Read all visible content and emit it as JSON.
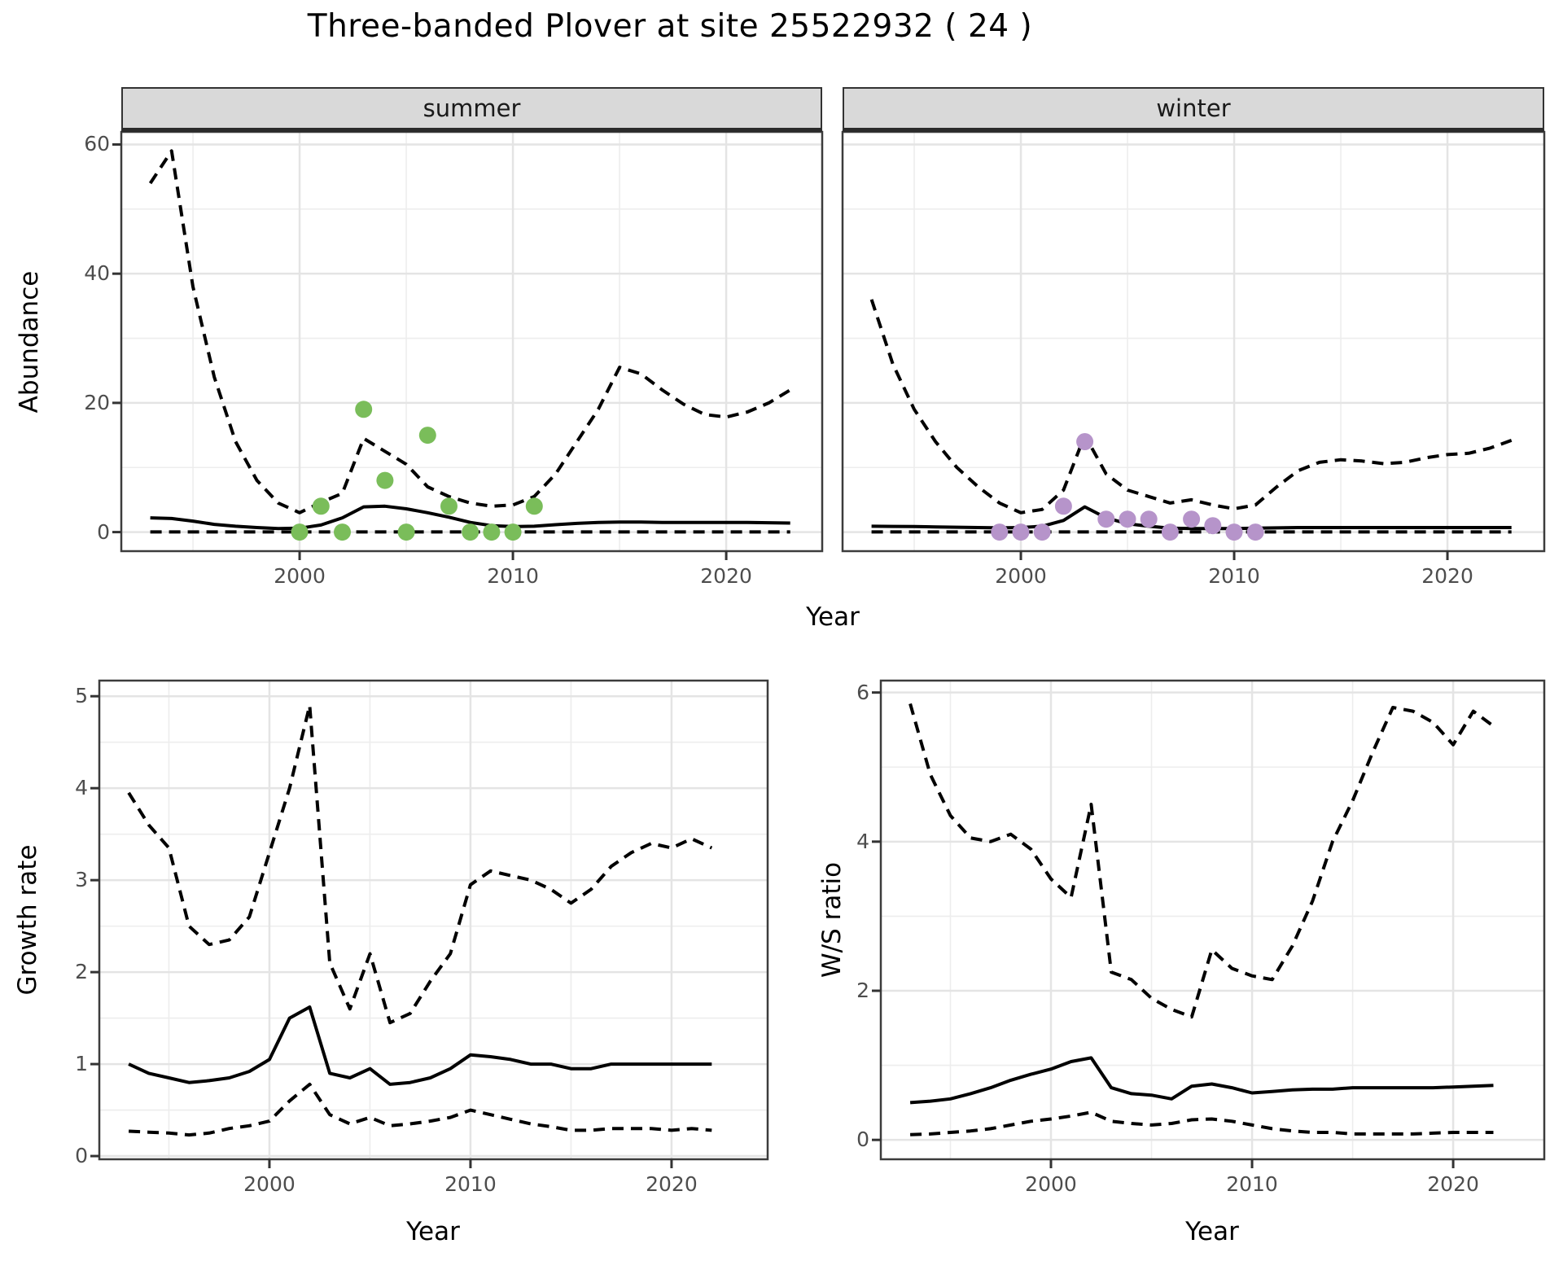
{
  "title": "Three-banded Plover at site 25522932 ( 24 )",
  "colors": {
    "summer_points": "#7abd5a",
    "winter_points": "#b694ca",
    "line": "#000000",
    "panel_border": "#3c3c3c",
    "grid_major": "#e4e4e4",
    "grid_minor": "#ededed",
    "strip_bg": "#d9d9d9",
    "tick_text": "#4d4d4d"
  },
  "chart_data": [
    {
      "type": "line",
      "facet": "summer",
      "xlabel": "Year",
      "ylabel": "Abundance",
      "xlim": [
        1991.64,
        2024.5
      ],
      "ylim": [
        -2.95,
        61.95
      ],
      "x_major": [
        2000,
        2010,
        2020
      ],
      "x_minor": [
        1995,
        2005,
        2015
      ],
      "y_major": [
        0,
        20,
        40,
        60
      ],
      "y_minor": [
        10,
        30,
        50
      ],
      "x_tick_labels": [
        "2000",
        "2010",
        "2020"
      ],
      "y_tick_labels": [
        "0",
        "20",
        "40",
        "60"
      ],
      "legend": "none",
      "grid": true,
      "series": [
        {
          "name": "upper_ci",
          "style": "dashed",
          "x": [
            1993,
            1994,
            1995,
            1996,
            1997,
            1998,
            1999,
            2000,
            2001,
            2002,
            2003,
            2004,
            2005,
            2006,
            2007,
            2008,
            2009,
            2010,
            2011,
            2012,
            2013,
            2014,
            2015,
            2016,
            2017,
            2018,
            2019,
            2020,
            2021,
            2022,
            2023
          ],
          "y": [
            54,
            59,
            38,
            24,
            14,
            8,
            4.5,
            3,
            4.6,
            6,
            14.5,
            12.5,
            10.5,
            7,
            5.5,
            4.5,
            4,
            4.2,
            5.5,
            9,
            14,
            19,
            25.5,
            24.5,
            22,
            19.8,
            18.2,
            17.8,
            18.6,
            20,
            22
          ]
        },
        {
          "name": "lower_ci",
          "style": "dashed",
          "x": [
            1993,
            1994,
            1995,
            1996,
            1997,
            1998,
            1999,
            2000,
            2001,
            2002,
            2003,
            2004,
            2005,
            2006,
            2007,
            2008,
            2009,
            2010,
            2011,
            2012,
            2013,
            2014,
            2015,
            2016,
            2017,
            2018,
            2019,
            2020,
            2021,
            2022,
            2023
          ],
          "y": [
            0.02,
            0.02,
            0.02,
            0.02,
            0.02,
            0.02,
            0.02,
            0.02,
            0.02,
            0.02,
            0.02,
            0.02,
            0.02,
            0.02,
            0.02,
            0.02,
            0.02,
            0.02,
            0.02,
            0.02,
            0.02,
            0.02,
            0.02,
            0.02,
            0.02,
            0.02,
            0.02,
            0.02,
            0.02,
            0.02,
            0.02
          ]
        },
        {
          "name": "mean",
          "style": "solid",
          "x": [
            1993,
            1994,
            1995,
            1996,
            1997,
            1998,
            1999,
            2000,
            2001,
            2002,
            2003,
            2004,
            2005,
            2006,
            2007,
            2008,
            2009,
            2010,
            2011,
            2012,
            2013,
            2014,
            2015,
            2016,
            2017,
            2018,
            2019,
            2020,
            2021,
            2022,
            2023
          ],
          "y": [
            2.2,
            2.1,
            1.7,
            1.2,
            0.9,
            0.7,
            0.55,
            0.6,
            1.1,
            2.2,
            3.9,
            4.0,
            3.6,
            3.0,
            2.3,
            1.5,
            1.0,
            0.85,
            0.9,
            1.15,
            1.35,
            1.5,
            1.55,
            1.55,
            1.5,
            1.5,
            1.5,
            1.5,
            1.5,
            1.45,
            1.4
          ]
        }
      ],
      "points": {
        "color": "#7abd5a",
        "x": [
          2000,
          2001,
          2002,
          2003,
          2004,
          2005,
          2006,
          2007,
          2008,
          2009,
          2010,
          2011
        ],
        "y": [
          0,
          4,
          0,
          19,
          8,
          0,
          15,
          4,
          0,
          0,
          0,
          4
        ]
      }
    },
    {
      "type": "line",
      "facet": "winter",
      "xlabel": "Year",
      "ylabel": "Abundance",
      "xlim": [
        1991.64,
        2024.54
      ],
      "ylim": [
        -2.95,
        61.95
      ],
      "x_major": [
        2000,
        2010,
        2020
      ],
      "x_minor": [
        1995,
        2005,
        2015
      ],
      "y_major": [
        0,
        20,
        40,
        60
      ],
      "y_minor": [
        10,
        30,
        50
      ],
      "x_tick_labels": [
        "2000",
        "2010",
        "2020"
      ],
      "y_tick_labels": [],
      "legend": "none",
      "grid": true,
      "series": [
        {
          "name": "upper_ci",
          "style": "dashed",
          "x": [
            1993,
            1994,
            1995,
            1996,
            1997,
            1998,
            1999,
            2000,
            2001,
            2002,
            2003,
            2004,
            2005,
            2006,
            2007,
            2008,
            2009,
            2010,
            2011,
            2012,
            2013,
            2014,
            2015,
            2016,
            2017,
            2018,
            2019,
            2020,
            2021,
            2022,
            2023
          ],
          "y": [
            36,
            26,
            19,
            14,
            10,
            7,
            4.5,
            3,
            3.5,
            6.5,
            15,
            9,
            6.5,
            5.5,
            4.5,
            5,
            4.2,
            3.6,
            4.2,
            7,
            9.5,
            10.8,
            11.2,
            11,
            10.6,
            10.8,
            11.5,
            12,
            12.2,
            13,
            14.2
          ]
        },
        {
          "name": "lower_ci",
          "style": "dashed",
          "x": [
            1993,
            1994,
            1995,
            1996,
            1997,
            1998,
            1999,
            2000,
            2001,
            2002,
            2003,
            2004,
            2005,
            2006,
            2007,
            2008,
            2009,
            2010,
            2011,
            2012,
            2013,
            2014,
            2015,
            2016,
            2017,
            2018,
            2019,
            2020,
            2021,
            2022,
            2023
          ],
          "y": [
            0.02,
            0.02,
            0.02,
            0.02,
            0.02,
            0.02,
            0.02,
            0.02,
            0.02,
            0.02,
            0.02,
            0.02,
            0.02,
            0.02,
            0.02,
            0.02,
            0.02,
            0.02,
            0.02,
            0.02,
            0.02,
            0.02,
            0.02,
            0.02,
            0.02,
            0.02,
            0.02,
            0.02,
            0.02,
            0.02,
            0.02
          ]
        },
        {
          "name": "mean",
          "style": "solid",
          "x": [
            1993,
            1994,
            1995,
            1996,
            1997,
            1998,
            1999,
            2000,
            2001,
            2002,
            2003,
            2004,
            2005,
            2006,
            2007,
            2008,
            2009,
            2010,
            2011,
            2012,
            2013,
            2014,
            2015,
            2016,
            2017,
            2018,
            2019,
            2020,
            2021,
            2022,
            2023
          ],
          "y": [
            0.9,
            0.88,
            0.85,
            0.8,
            0.75,
            0.7,
            0.65,
            0.7,
            0.9,
            1.8,
            3.9,
            2.2,
            1.3,
            0.9,
            0.6,
            0.55,
            0.55,
            0.55,
            0.6,
            0.65,
            0.7,
            0.7,
            0.7,
            0.7,
            0.7,
            0.7,
            0.7,
            0.7,
            0.7,
            0.7,
            0.7
          ]
        }
      ],
      "points": {
        "color": "#b694ca",
        "x": [
          1999,
          2000,
          2001,
          2002,
          2003,
          2004,
          2005,
          2006,
          2007,
          2008,
          2009,
          2010,
          2011
        ],
        "y": [
          0,
          0,
          0,
          4,
          14,
          2,
          2,
          2,
          0,
          2,
          1,
          0,
          0
        ]
      }
    },
    {
      "type": "line",
      "facet": null,
      "xlabel": "Year",
      "ylabel": "Growth rate",
      "xlim": [
        1991.54,
        2024.78
      ],
      "ylim": [
        -0.035,
        5.17
      ],
      "x_major": [
        2000,
        2010,
        2020
      ],
      "x_minor": [
        1995,
        2005,
        2015
      ],
      "y_major": [
        0,
        1,
        2,
        3,
        4,
        5
      ],
      "y_minor": [
        0.5,
        1.5,
        2.5,
        3.5,
        4.5
      ],
      "x_tick_labels": [
        "2000",
        "2010",
        "2020"
      ],
      "y_tick_labels": [
        "0",
        "1",
        "2",
        "3",
        "4",
        "5"
      ],
      "legend": "none",
      "grid": true,
      "series": [
        {
          "name": "upper_ci",
          "style": "dashed",
          "x": [
            1993,
            1994,
            1995,
            1996,
            1997,
            1998,
            1999,
            2000,
            2001,
            2002,
            2003,
            2004,
            2005,
            2006,
            2007,
            2008,
            2009,
            2010,
            2011,
            2012,
            2013,
            2014,
            2015,
            2016,
            2017,
            2018,
            2019,
            2020,
            2021,
            2022
          ],
          "y": [
            3.95,
            3.6,
            3.35,
            2.5,
            2.3,
            2.35,
            2.6,
            3.3,
            4.0,
            4.9,
            2.1,
            1.6,
            2.2,
            1.45,
            1.55,
            1.9,
            2.2,
            2.95,
            3.1,
            3.05,
            3.0,
            2.9,
            2.75,
            2.9,
            3.15,
            3.3,
            3.4,
            3.35,
            3.45,
            3.35
          ]
        },
        {
          "name": "lower_ci",
          "style": "dashed",
          "x": [
            1993,
            1994,
            1995,
            1996,
            1997,
            1998,
            1999,
            2000,
            2001,
            2002,
            2003,
            2004,
            2005,
            2006,
            2007,
            2008,
            2009,
            2010,
            2011,
            2012,
            2013,
            2014,
            2015,
            2016,
            2017,
            2018,
            2019,
            2020,
            2021,
            2022
          ],
          "y": [
            0.27,
            0.26,
            0.25,
            0.23,
            0.25,
            0.3,
            0.33,
            0.38,
            0.6,
            0.78,
            0.45,
            0.35,
            0.42,
            0.33,
            0.35,
            0.38,
            0.42,
            0.5,
            0.45,
            0.4,
            0.35,
            0.32,
            0.28,
            0.28,
            0.3,
            0.3,
            0.3,
            0.28,
            0.3,
            0.28
          ]
        },
        {
          "name": "mean",
          "style": "solid",
          "x": [
            1993,
            1994,
            1995,
            1996,
            1997,
            1998,
            1999,
            2000,
            2001,
            2002,
            2003,
            2004,
            2005,
            2006,
            2007,
            2008,
            2009,
            2010,
            2011,
            2012,
            2013,
            2014,
            2015,
            2016,
            2017,
            2018,
            2019,
            2020,
            2021,
            2022
          ],
          "y": [
            1.0,
            0.9,
            0.85,
            0.8,
            0.82,
            0.85,
            0.92,
            1.05,
            1.5,
            1.62,
            0.9,
            0.85,
            0.95,
            0.78,
            0.8,
            0.85,
            0.95,
            1.1,
            1.08,
            1.05,
            1.0,
            1.0,
            0.95,
            0.95,
            1.0,
            1.0,
            1.0,
            1.0,
            1.0,
            1.0
          ]
        }
      ],
      "points": null
    },
    {
      "type": "line",
      "facet": null,
      "xlabel": "Year",
      "ylabel": "W/S ratio",
      "xlim": [
        1991.54,
        2024.53
      ],
      "ylim": [
        -0.26,
        6.16
      ],
      "x_major": [
        2000,
        2010,
        2020
      ],
      "x_minor": [
        1995,
        2005,
        2015
      ],
      "y_major": [
        0,
        2,
        4,
        6
      ],
      "y_minor": [
        1,
        3,
        5
      ],
      "x_tick_labels": [
        "2000",
        "2010",
        "2020"
      ],
      "y_tick_labels": [
        "0",
        "2",
        "4",
        "6"
      ],
      "legend": "none",
      "grid": true,
      "series": [
        {
          "name": "upper_ci",
          "style": "dashed",
          "x": [
            1993,
            1994,
            1995,
            1996,
            1997,
            1998,
            1999,
            2000,
            2001,
            2002,
            2003,
            2004,
            2005,
            2006,
            2007,
            2008,
            2009,
            2010,
            2011,
            2012,
            2013,
            2014,
            2015,
            2016,
            2017,
            2018,
            2019,
            2020,
            2021,
            2022
          ],
          "y": [
            5.85,
            4.9,
            4.35,
            4.05,
            4.0,
            4.1,
            3.9,
            3.5,
            3.25,
            4.5,
            2.25,
            2.15,
            1.9,
            1.75,
            1.65,
            2.55,
            2.3,
            2.2,
            2.15,
            2.6,
            3.2,
            4.0,
            4.55,
            5.2,
            5.8,
            5.75,
            5.6,
            5.3,
            5.75,
            5.55
          ]
        },
        {
          "name": "lower_ci",
          "style": "dashed",
          "x": [
            1993,
            1994,
            1995,
            1996,
            1997,
            1998,
            1999,
            2000,
            2001,
            2002,
            2003,
            2004,
            2005,
            2006,
            2007,
            2008,
            2009,
            2010,
            2011,
            2012,
            2013,
            2014,
            2015,
            2016,
            2017,
            2018,
            2019,
            2020,
            2021,
            2022
          ],
          "y": [
            0.07,
            0.08,
            0.1,
            0.12,
            0.15,
            0.2,
            0.25,
            0.28,
            0.32,
            0.37,
            0.25,
            0.22,
            0.2,
            0.22,
            0.27,
            0.28,
            0.25,
            0.2,
            0.15,
            0.12,
            0.1,
            0.1,
            0.08,
            0.08,
            0.08,
            0.08,
            0.09,
            0.1,
            0.1,
            0.1
          ]
        },
        {
          "name": "mean",
          "style": "solid",
          "x": [
            1993,
            1994,
            1995,
            1996,
            1997,
            1998,
            1999,
            2000,
            2001,
            2002,
            2003,
            2004,
            2005,
            2006,
            2007,
            2008,
            2009,
            2010,
            2011,
            2012,
            2013,
            2014,
            2015,
            2016,
            2017,
            2018,
            2019,
            2020,
            2021,
            2022
          ],
          "y": [
            0.5,
            0.52,
            0.55,
            0.62,
            0.7,
            0.8,
            0.88,
            0.95,
            1.05,
            1.1,
            0.7,
            0.62,
            0.6,
            0.55,
            0.72,
            0.75,
            0.7,
            0.63,
            0.65,
            0.67,
            0.68,
            0.68,
            0.7,
            0.7,
            0.7,
            0.7,
            0.7,
            0.71,
            0.72,
            0.73
          ]
        }
      ],
      "points": null
    }
  ]
}
